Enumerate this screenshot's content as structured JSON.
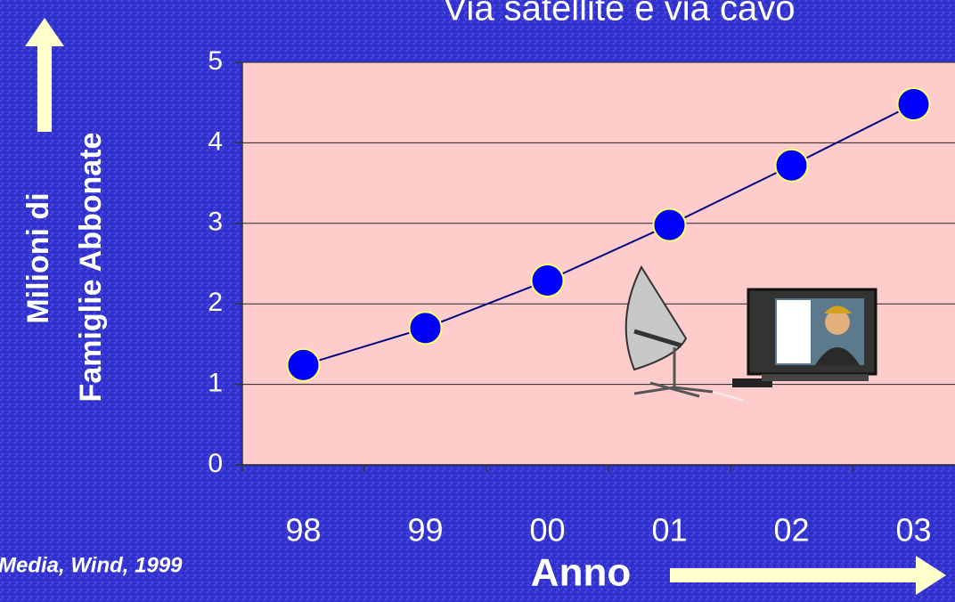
{
  "chart_data": {
    "type": "line",
    "title": "Via satellite e via cavo",
    "y_label": [
      "Milioni di",
      "Famiglie Abbonate"
    ],
    "x_label": "Anno",
    "source": "Media, Wind, 1999",
    "categories": [
      "98",
      "99",
      "00",
      "01",
      "02",
      "03"
    ],
    "series": [
      {
        "color": "#000080",
        "marker_color": "#0000ff",
        "values": [
          1.24,
          1.7,
          2.29,
          2.98,
          3.72,
          4.48
        ]
      }
    ],
    "ylim": [
      0,
      5
    ],
    "yticks": [
      0,
      1,
      2,
      3,
      4,
      5
    ],
    "grid": true,
    "plot_color": "#ffcccc"
  }
}
